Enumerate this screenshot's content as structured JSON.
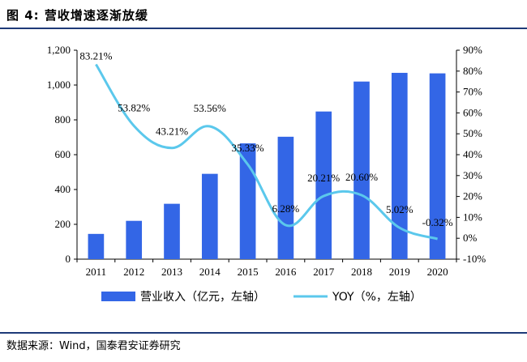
{
  "figure": {
    "title": "图 4: 营收增速逐渐放缓",
    "source": "数据来源：Wind，国泰君安证券研究"
  },
  "chart_data": {
    "type": "bar",
    "categories": [
      "2011",
      "2012",
      "2013",
      "2014",
      "2015",
      "2016",
      "2017",
      "2018",
      "2019",
      "2020"
    ],
    "series": [
      {
        "name": "营业收入（亿元，左轴）",
        "type": "bar",
        "axis": "left",
        "color": "#3366e6",
        "values": [
          145,
          220,
          318,
          490,
          665,
          703,
          848,
          1020,
          1070,
          1067
        ]
      },
      {
        "name": "YOY（%，左轴）",
        "type": "line",
        "axis": "right",
        "color": "#5bc8ec",
        "values": [
          83.21,
          53.82,
          43.21,
          53.56,
          35.33,
          6.28,
          20.21,
          20.6,
          5.02,
          -0.32
        ],
        "labels": [
          "83.21%",
          "53.82%",
          "43.21%",
          "53.56%",
          "35.33%",
          "6.28%",
          "20.21%",
          "20.60%",
          "5.02%",
          "-0.32%"
        ]
      }
    ],
    "y_left": {
      "range": [
        0,
        1200
      ],
      "ticks": [
        "0",
        "200",
        "400",
        "600",
        "800",
        "1,000",
        "1,200"
      ]
    },
    "y_right": {
      "range": [
        -10,
        90
      ],
      "ticks": [
        "-10%",
        "0%",
        "10%",
        "20%",
        "30%",
        "40%",
        "50%",
        "60%",
        "70%",
        "80%",
        "90%"
      ]
    },
    "grid": false,
    "legend_position": "bottom"
  }
}
